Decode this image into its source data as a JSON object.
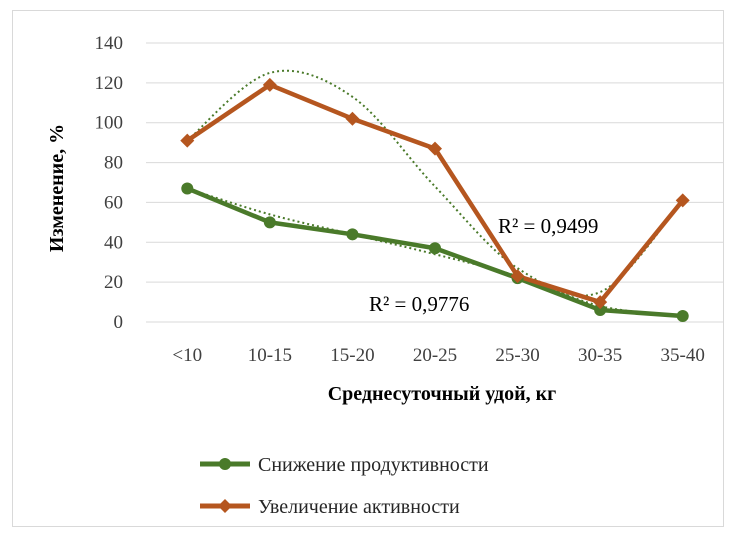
{
  "chart_data": {
    "type": "line",
    "title": "",
    "xlabel": "Среднесуточный удой, кг",
    "ylabel": "Изменение, %",
    "categories": [
      "<10",
      "10-15",
      "15-20",
      "20-25",
      "25-30",
      "30-35",
      "35-40"
    ],
    "ylim": [
      0,
      140
    ],
    "yticks": [
      0,
      20,
      40,
      60,
      80,
      100,
      120,
      140
    ],
    "grid": true,
    "legend_position": "bottom",
    "series": [
      {
        "name": "Снижение продуктивности",
        "values": [
          67,
          50,
          44,
          37,
          22,
          6,
          3
        ],
        "color": "#4a7a2a",
        "marker": "circle",
        "trendline": {
          "values": [
            67,
            54,
            44,
            34,
            23,
            8,
            3
          ],
          "r2_label": "R² = 0,9776",
          "color": "#4a7a2a"
        }
      },
      {
        "name": "Увеличение активности",
        "values": [
          91,
          119,
          102,
          87,
          23,
          10,
          61
        ],
        "color": "#b5561f",
        "marker": "diamond",
        "trendline": {
          "values": [
            91,
            125,
            113,
            68,
            27,
            15,
            61
          ],
          "r2_label": "R² = 0,9499",
          "color": "#4a7a2a"
        }
      }
    ]
  }
}
